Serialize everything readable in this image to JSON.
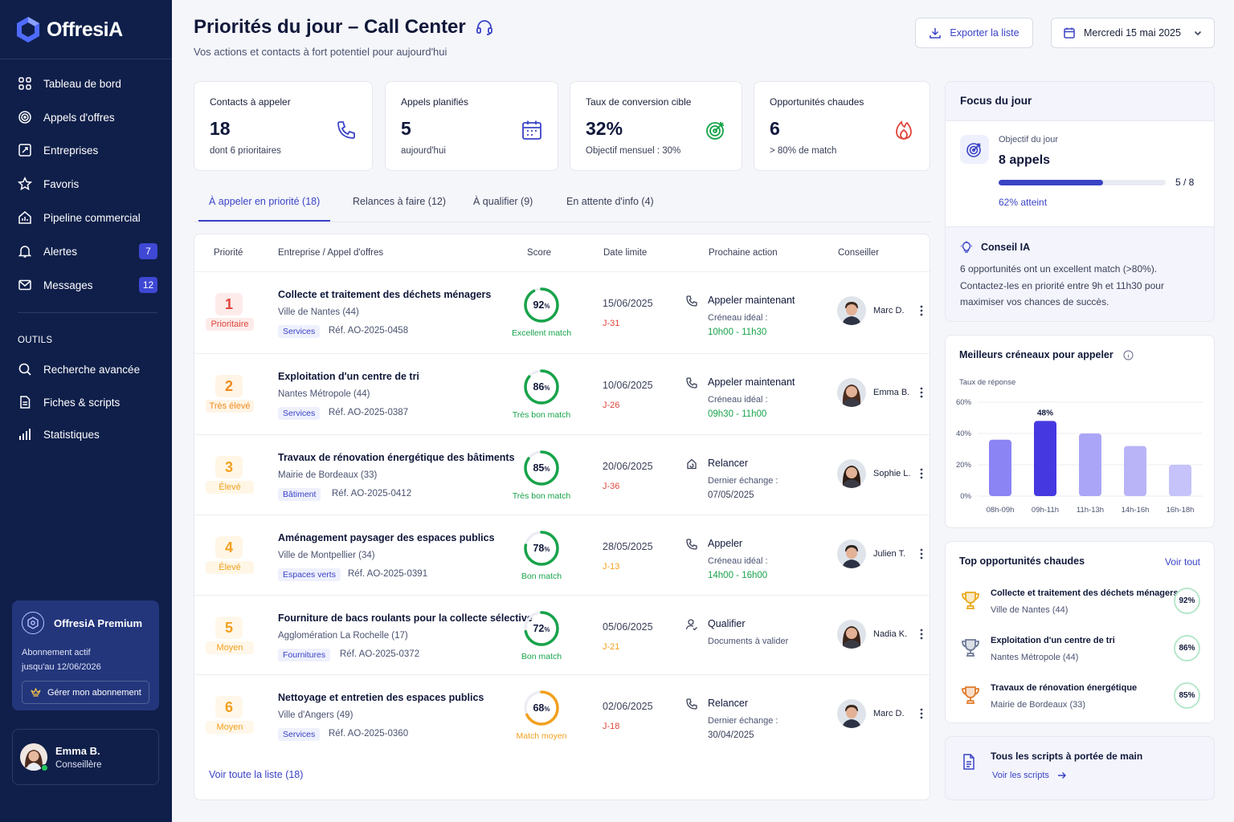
{
  "app": {
    "name": "OffresiA"
  },
  "colors": {
    "primary": "#3a43c6",
    "sidebar": "#0f1f4a",
    "red": "#e0453b",
    "orange": "#f2a01e",
    "green": "#17a34a"
  },
  "sidebar": {
    "items": [
      {
        "label": "Tableau de bord",
        "icon": "grid-icon"
      },
      {
        "label": "Appels d'offres",
        "icon": "target-icon"
      },
      {
        "label": "Entreprises",
        "icon": "building-icon"
      },
      {
        "label": "Favoris",
        "icon": "star-icon"
      },
      {
        "label": "Pipeline commercial",
        "icon": "pipeline-icon"
      },
      {
        "label": "Alertes",
        "icon": "bell-icon",
        "badge": "7"
      },
      {
        "label": "Messages",
        "icon": "mail-icon",
        "badge": "12"
      }
    ],
    "tools_title": "OUTILS",
    "tools": [
      {
        "label": "Recherche avancée",
        "icon": "search-icon"
      },
      {
        "label": "Fiches & scripts",
        "icon": "document-icon"
      },
      {
        "label": "Statistiques",
        "icon": "bar-chart-icon"
      }
    ],
    "premium": {
      "title": "OffresiA Premium",
      "line1": "Abonnement actif",
      "line2": "jusqu'au 12/06/2026",
      "button": "Gérer mon abonnement"
    },
    "user": {
      "name": "Emma B.",
      "role": "Conseillère"
    }
  },
  "header": {
    "title": "Priorités du jour – Call Center",
    "subtitle": "Vos actions et contacts à fort potentiel pour aujourd'hui",
    "export_label": "Exporter la liste",
    "date_label": "Mercredi 15 mai 2025"
  },
  "kpis": [
    {
      "label": "Contacts à appeler",
      "value": "18",
      "sub": "dont 6 prioritaires",
      "icon": "phone-icon"
    },
    {
      "label": "Appels planifiés",
      "value": "5",
      "sub": "aujourd'hui",
      "icon": "calendar-icon"
    },
    {
      "label": "Taux de conversion cible",
      "value": "32%",
      "sub": "Objectif mensuel : 30%",
      "icon": "target-icon"
    },
    {
      "label": "Opportunités chaudes",
      "value": "6",
      "sub": "> 80% de match",
      "icon": "flame-icon"
    }
  ],
  "tabs": [
    {
      "label": "À appeler en priorité (18)"
    },
    {
      "label": "Relances à faire (12)"
    },
    {
      "label": "À qualifier (9)"
    },
    {
      "label": "En attente d'info (4)"
    }
  ],
  "table": {
    "headers": {
      "priority": "Priorité",
      "company": "Entreprise / Appel d'offres",
      "score": "Score",
      "deadline": "Date limite",
      "next_action": "Prochaine action",
      "advisor": "Conseiller"
    },
    "rows": [
      {
        "rank": "1",
        "priority": "Prioritaire",
        "title": "Collecte et traitement des déchets ménagers",
        "org": "Ville de Nantes (44)",
        "tag": "Services",
        "ref": "Réf. AO-2025-0458",
        "score": 92,
        "score_label": "Excellent match",
        "date": "15/06/2025",
        "days": "J-31",
        "action": "Appeler maintenant",
        "action_sub": "Créneau idéal :",
        "action_val": "10h00 - 11h30",
        "advisor": "Marc D."
      },
      {
        "rank": "2",
        "priority": "Très élevé",
        "title": "Exploitation d'un centre de tri",
        "org": "Nantes Métropole (44)",
        "tag": "Services",
        "ref": "Réf. AO-2025-0387",
        "score": 86,
        "score_label": "Très bon match",
        "date": "10/06/2025",
        "days": "J-26",
        "action": "Appeler maintenant",
        "action_sub": "Créneau idéal :",
        "action_val": "09h30 - 11h00",
        "advisor": "Emma B."
      },
      {
        "rank": "3",
        "priority": "Élevé",
        "title": "Travaux de rénovation énergétique des bâtiments",
        "org": "Mairie de Bordeaux (33)",
        "tag": "Bâtiment",
        "ref": "Réf. AO-2025-0412",
        "score": 85,
        "score_label": "Très bon match",
        "date": "20/06/2025",
        "days": "J-36",
        "action": "Relancer",
        "action_sub": "Dernier échange :",
        "action_val": "07/05/2025",
        "advisor": "Sophie L."
      },
      {
        "rank": "4",
        "priority": "Élevé",
        "title": "Aménagement paysager des espaces publics",
        "org": "Ville de Montpellier (34)",
        "tag": "Espaces verts",
        "ref": "Réf. AO-2025-0391",
        "score": 78,
        "score_label": "Bon match",
        "date": "28/05/2025",
        "days": "J-13",
        "action": "Appeler",
        "action_sub": "Créneau idéal :",
        "action_val": "14h00 - 16h00",
        "advisor": "Julien T."
      },
      {
        "rank": "5",
        "priority": "Moyen",
        "title": "Fourniture de bacs roulants pour la collecte sélective",
        "org": "Agglomération La Rochelle (17)",
        "tag": "Fournitures",
        "ref": "Réf. AO-2025-0372",
        "score": 72,
        "score_label": "Bon match",
        "date": "05/06/2025",
        "days": "J-21",
        "action": "Qualifier",
        "action_sub": "Documents à valider",
        "action_val": "",
        "advisor": "Nadia K."
      },
      {
        "rank": "6",
        "priority": "Moyen",
        "title": "Nettoyage et entretien des espaces publics",
        "org": "Ville d'Angers (49)",
        "tag": "Services",
        "ref": "Réf. AO-2025-0360",
        "score": 68,
        "score_label": "Match moyen",
        "date": "02/06/2025",
        "days": "J-18",
        "action": "Relancer",
        "action_sub": "Dernier échange :",
        "action_val": "30/04/2025",
        "advisor": "Marc D."
      }
    ],
    "see_all": "Voir toute la liste (18)"
  },
  "focus": {
    "title": "Focus du jour",
    "objective_label": "Objectif du jour",
    "objective_value": "8 appels",
    "progress_done": 5,
    "progress_total": 8,
    "progress_text": "5 / 8",
    "progress_pct_text": "62% atteint",
    "ai_title": "Conseil IA",
    "ai_text": "6 opportunités ont un excellent match (>80%). Contactez-les en priorité entre 9h et 11h30 pour maximiser vos chances de succès."
  },
  "slots": {
    "title": "Meilleurs créneaux pour appeler"
  },
  "chart_data": {
    "type": "bar",
    "title": "Meilleurs créneaux pour appeler",
    "ylabel": "Taux de réponse",
    "categories": [
      "08h-09h",
      "09h-11h",
      "11h-13h",
      "14h-16h",
      "16h-18h"
    ],
    "values": [
      36,
      48,
      40,
      32,
      20
    ],
    "ylim": [
      0,
      60
    ],
    "yticks": [
      "0%",
      "20%",
      "40%",
      "60%"
    ],
    "highlight_label": "48%",
    "grid": true
  },
  "top": {
    "title": "Top opportunités chaudes",
    "link": "Voir tout",
    "items": [
      {
        "title": "Collecte et traitement des déchets ménagers",
        "org": "Ville de Nantes (44)",
        "score": "92%",
        "icon": "trophy-gold-icon"
      },
      {
        "title": "Exploitation d'un centre de tri",
        "org": "Nantes Métropole (44)",
        "score": "86%",
        "icon": "trophy-silver-icon"
      },
      {
        "title": "Travaux de rénovation énergétique",
        "org": "Mairie de Bordeaux (33)",
        "score": "85%",
        "icon": "trophy-bronze-icon"
      }
    ]
  },
  "scripts": {
    "title": "Tous les scripts à portée de main",
    "link": "Voir les scripts"
  }
}
